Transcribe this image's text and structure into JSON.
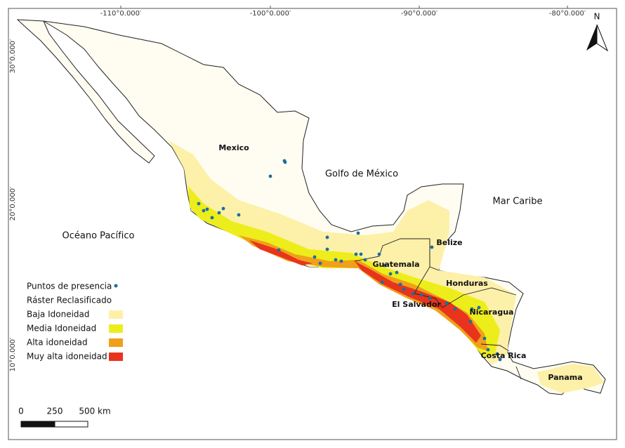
{
  "map": {
    "graticule": {
      "longitude": [
        "-110°0.000′",
        "-100°0.000′",
        "-90°0.000′",
        "-80°0.000′"
      ],
      "latitude": [
        "30°0.000′",
        "20°0.000′",
        "10°0.000′"
      ]
    },
    "north": "N",
    "water_labels": [
      "Golfo de México",
      "Mar Caribe",
      "Océano Pacífico"
    ],
    "country_labels": [
      "Mexico",
      "Belize",
      "Guatemala",
      "Honduras",
      "El Salvador",
      "Nicaragua",
      "Costa Rica",
      "Panama"
    ]
  },
  "legend": {
    "points": "Puntos de presencia",
    "raster_title": "Ráster Reclasificado",
    "classes": [
      {
        "label": "Baja Idoneidad",
        "color": "#fdf0a8"
      },
      {
        "label": "Media Idoneidad",
        "color": "#eded1c"
      },
      {
        "label": "Alta idoneidad",
        "color": "#f0a01a"
      },
      {
        "label": "Muy alta idoneidad",
        "color": "#e8341c"
      }
    ]
  },
  "scale_bar": {
    "labels": [
      "0",
      "250",
      "500 km"
    ]
  }
}
